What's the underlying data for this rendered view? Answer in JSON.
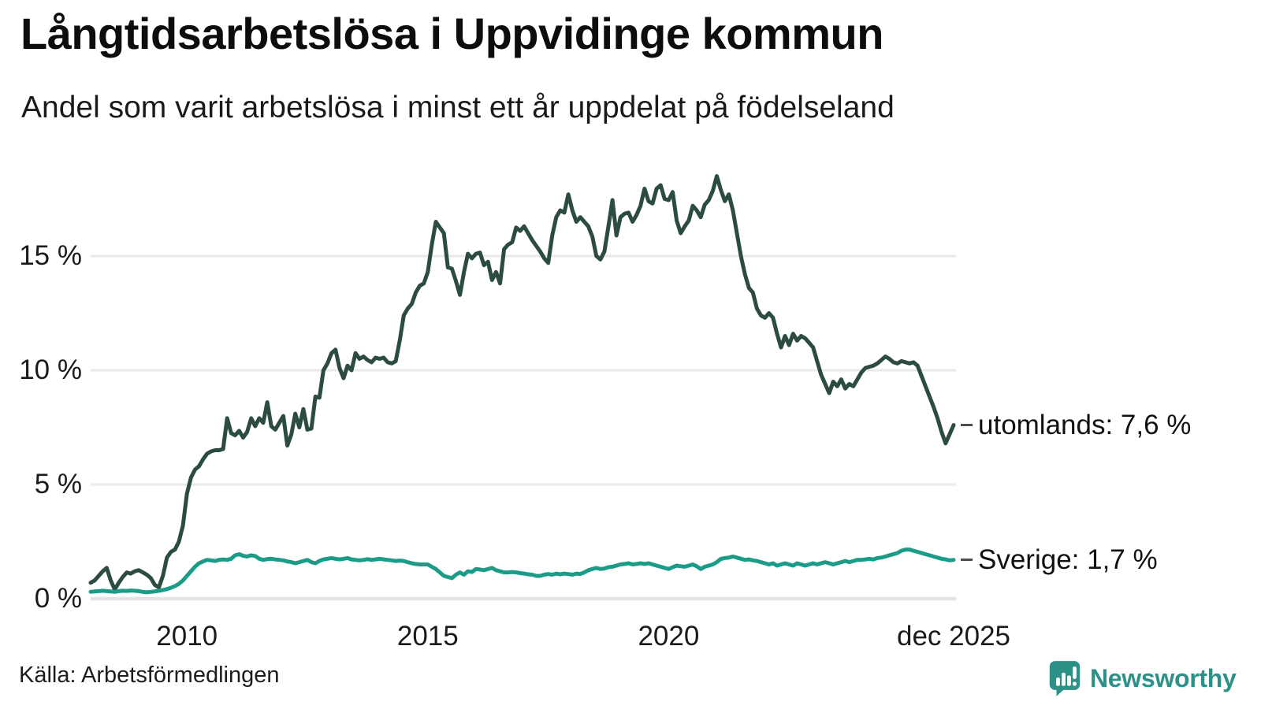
{
  "header": {
    "title": "Långtidsarbetslösa i Uppvidinge kommun",
    "subtitle": "Andel som varit arbetslösa i minst ett år uppdelat på födelseland"
  },
  "chart_data": {
    "type": "line",
    "title": "Långtidsarbetslösa i Uppvidinge kommun",
    "subtitle": "Andel som varit arbetslösa i minst ett år uppdelat på födelseland",
    "unit": "%",
    "frequency": "monthly",
    "x_start": "2008-01",
    "x_end": "2025-12",
    "grid": true,
    "ylim": [
      0,
      19
    ],
    "yticks": [
      {
        "value": 0,
        "label": "0 %"
      },
      {
        "value": 5,
        "label": "5 %"
      },
      {
        "value": 10,
        "label": "10 %"
      },
      {
        "value": 15,
        "label": "15 %"
      }
    ],
    "xticks": [
      {
        "month_index": 24,
        "label": "2010"
      },
      {
        "month_index": 84,
        "label": "2015"
      },
      {
        "month_index": 144,
        "label": "2020"
      },
      {
        "month_index": 215,
        "label": "dec 2025"
      }
    ],
    "series": [
      {
        "name": "utomlands",
        "color": "#2c4b41",
        "end_label": "utomlands: 7,6 %",
        "end_value": 7.6,
        "values": [
          0.7,
          0.8,
          1.0,
          1.2,
          1.35,
          0.8,
          0.4,
          0.7,
          0.95,
          1.15,
          1.1,
          1.2,
          1.25,
          1.15,
          1.05,
          0.9,
          0.6,
          0.5,
          1.0,
          1.8,
          2.05,
          2.15,
          2.5,
          3.2,
          4.6,
          5.3,
          5.65,
          5.8,
          6.1,
          6.35,
          6.45,
          6.5,
          6.5,
          6.55,
          7.9,
          7.25,
          7.15,
          7.35,
          7.05,
          7.3,
          7.9,
          7.55,
          7.9,
          7.7,
          8.6,
          7.55,
          7.4,
          7.7,
          8.0,
          6.7,
          7.2,
          8.1,
          7.5,
          8.3,
          7.4,
          7.45,
          8.85,
          8.8,
          10.0,
          10.3,
          10.75,
          10.9,
          10.1,
          9.65,
          10.2,
          10.0,
          10.75,
          10.5,
          10.6,
          10.45,
          10.35,
          10.55,
          10.5,
          10.55,
          10.35,
          10.3,
          10.4,
          11.3,
          12.4,
          12.7,
          12.9,
          13.4,
          13.7,
          13.8,
          14.3,
          15.5,
          16.5,
          16.25,
          16.0,
          14.5,
          14.45,
          13.9,
          13.3,
          14.3,
          15.1,
          14.9,
          15.1,
          15.15,
          14.6,
          14.75,
          13.95,
          14.3,
          13.8,
          15.3,
          15.5,
          15.6,
          16.25,
          16.1,
          16.3,
          16.0,
          15.7,
          15.45,
          15.2,
          14.9,
          14.7,
          15.9,
          16.7,
          17.0,
          16.9,
          17.7,
          17.0,
          16.5,
          16.7,
          16.5,
          16.3,
          15.85,
          15.0,
          14.85,
          15.2,
          16.3,
          17.45,
          15.9,
          16.7,
          16.85,
          16.9,
          16.5,
          16.8,
          17.2,
          17.95,
          17.4,
          17.3,
          17.95,
          18.1,
          17.5,
          17.45,
          17.8,
          16.55,
          16.0,
          16.3,
          16.55,
          17.2,
          17.0,
          16.7,
          17.25,
          17.45,
          17.85,
          18.5,
          17.9,
          17.4,
          17.7,
          17.0,
          16.0,
          15.0,
          14.2,
          13.6,
          13.4,
          12.7,
          12.4,
          12.3,
          12.5,
          12.3,
          11.6,
          11.0,
          11.5,
          11.1,
          11.6,
          11.3,
          11.5,
          11.4,
          11.2,
          11.0,
          10.4,
          9.8,
          9.4,
          9.0,
          9.5,
          9.3,
          9.6,
          9.2,
          9.4,
          9.3,
          9.6,
          9.9,
          10.1,
          10.15,
          10.2,
          10.3,
          10.45,
          10.6,
          10.5,
          10.35,
          10.3,
          10.4,
          10.35,
          10.3,
          10.35,
          10.2,
          9.75,
          9.3,
          8.85,
          8.4,
          7.9,
          7.3,
          6.8,
          7.2,
          7.6
        ]
      },
      {
        "name": "Sverige",
        "color": "#1a9c89",
        "end_label": "Sverige: 1,7 %",
        "end_value": 1.7,
        "values": [
          0.3,
          0.32,
          0.33,
          0.35,
          0.33,
          0.32,
          0.3,
          0.33,
          0.35,
          0.34,
          0.36,
          0.35,
          0.33,
          0.3,
          0.28,
          0.3,
          0.32,
          0.35,
          0.38,
          0.42,
          0.48,
          0.55,
          0.65,
          0.8,
          1.0,
          1.2,
          1.4,
          1.55,
          1.63,
          1.7,
          1.68,
          1.65,
          1.7,
          1.72,
          1.7,
          1.75,
          1.9,
          1.95,
          1.88,
          1.85,
          1.9,
          1.87,
          1.75,
          1.7,
          1.73,
          1.75,
          1.72,
          1.7,
          1.68,
          1.63,
          1.6,
          1.55,
          1.6,
          1.65,
          1.7,
          1.6,
          1.55,
          1.65,
          1.72,
          1.75,
          1.78,
          1.75,
          1.72,
          1.75,
          1.78,
          1.72,
          1.7,
          1.68,
          1.7,
          1.73,
          1.7,
          1.72,
          1.75,
          1.72,
          1.7,
          1.68,
          1.65,
          1.67,
          1.65,
          1.6,
          1.55,
          1.52,
          1.5,
          1.5,
          1.5,
          1.4,
          1.3,
          1.15,
          1.0,
          0.95,
          0.9,
          1.05,
          1.15,
          1.05,
          1.2,
          1.17,
          1.3,
          1.28,
          1.25,
          1.3,
          1.35,
          1.25,
          1.2,
          1.15,
          1.15,
          1.17,
          1.15,
          1.12,
          1.1,
          1.07,
          1.05,
          1.0,
          1.0,
          1.05,
          1.08,
          1.05,
          1.1,
          1.07,
          1.1,
          1.08,
          1.05,
          1.1,
          1.08,
          1.15,
          1.25,
          1.3,
          1.35,
          1.3,
          1.32,
          1.38,
          1.4,
          1.45,
          1.5,
          1.52,
          1.55,
          1.5,
          1.52,
          1.55,
          1.52,
          1.55,
          1.5,
          1.45,
          1.4,
          1.35,
          1.3,
          1.38,
          1.45,
          1.42,
          1.4,
          1.45,
          1.5,
          1.42,
          1.3,
          1.4,
          1.45,
          1.5,
          1.6,
          1.74,
          1.78,
          1.8,
          1.85,
          1.8,
          1.75,
          1.7,
          1.72,
          1.68,
          1.65,
          1.6,
          1.55,
          1.5,
          1.55,
          1.45,
          1.5,
          1.55,
          1.5,
          1.45,
          1.55,
          1.5,
          1.45,
          1.5,
          1.55,
          1.5,
          1.55,
          1.6,
          1.55,
          1.5,
          1.55,
          1.6,
          1.65,
          1.6,
          1.65,
          1.7,
          1.7,
          1.72,
          1.75,
          1.72,
          1.78,
          1.8,
          1.85,
          1.9,
          1.95,
          2.0,
          2.1,
          2.15,
          2.15,
          2.1,
          2.05,
          2.0,
          1.95,
          1.9,
          1.85,
          1.8,
          1.75,
          1.72,
          1.68,
          1.7
        ]
      }
    ],
    "legend_position": "end-of-line annotations, right side"
  },
  "footer": {
    "source": "Källa: Arbetsförmedlingen",
    "brand": "Newsworthy"
  },
  "colors": {
    "background": "#ffffff",
    "grid": "#e9e9eb",
    "zero_line": "#e3e3e6",
    "axis_text": "#1a1a1a",
    "series_utomlands": "#2c4b41",
    "series_sverige": "#1a9c89",
    "brand_teal": "#2e9187"
  }
}
